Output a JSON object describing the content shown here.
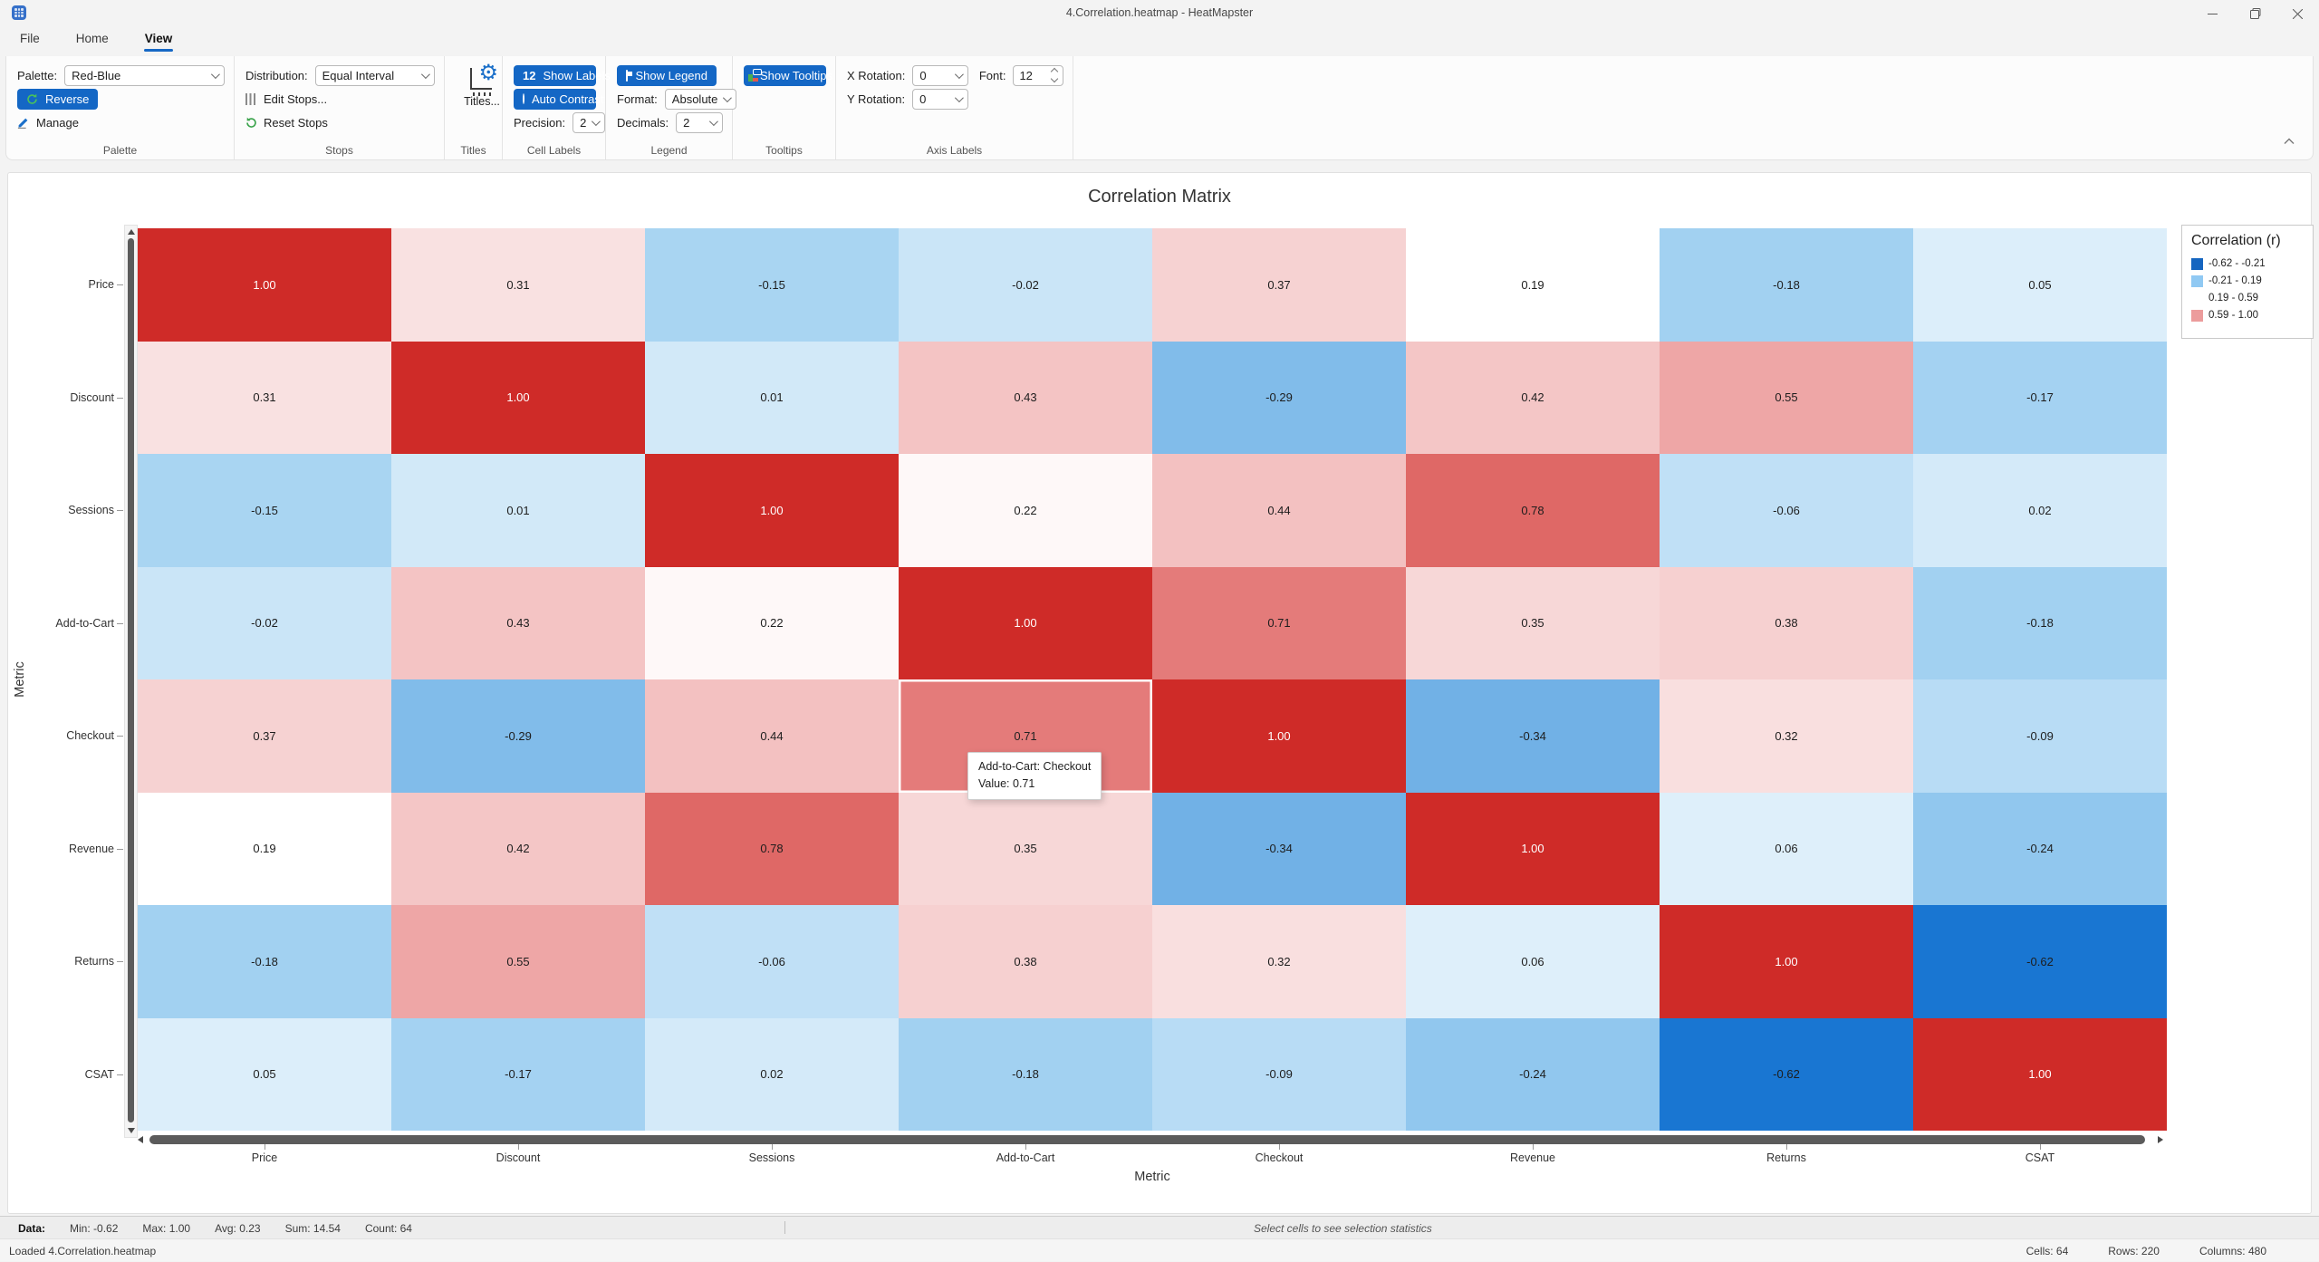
{
  "window": {
    "title": "4.Correlation.heatmap - HeatMapster"
  },
  "tabs": {
    "file": "File",
    "home": "Home",
    "view": "View"
  },
  "ribbon": {
    "palette": {
      "title": "Palette",
      "label": "Palette:",
      "value": "Red-Blue",
      "reverse": "Reverse",
      "manage": "Manage"
    },
    "stops": {
      "title": "Stops",
      "label": "Distribution:",
      "value": "Equal Interval",
      "edit": "Edit Stops...",
      "reset": "Reset Stops"
    },
    "titles": {
      "title": "Titles",
      "button": "Titles..."
    },
    "cell_labels": {
      "title": "Cell Labels",
      "badge": "12",
      "show_labels": "Show Labels",
      "auto_contrast": "Auto Contrast",
      "precision_label": "Precision:",
      "precision_value": "2"
    },
    "legend": {
      "title": "Legend",
      "show_legend": "Show Legend",
      "format_label": "Format:",
      "format_value": "Absolute",
      "decimals_label": "Decimals:",
      "decimals_value": "2"
    },
    "tooltips": {
      "title": "Tooltips",
      "show_tooltips": "Show Tooltips"
    },
    "axis_labels": {
      "title": "Axis Labels",
      "x_label": "X Rotation:",
      "x_value": "0",
      "y_label": "Y Rotation:",
      "y_value": "0",
      "font_label": "Font:",
      "font_value": "12"
    }
  },
  "accent_color": "#1467c5",
  "chart_data": {
    "type": "heatmap",
    "title": "Correlation Matrix",
    "xlabel": "Metric",
    "ylabel": "Metric",
    "categories": [
      "Price",
      "Discount",
      "Sessions",
      "Add-to-Cart",
      "Checkout",
      "Revenue",
      "Returns",
      "CSAT"
    ],
    "matrix": [
      [
        1.0,
        0.31,
        -0.15,
        -0.02,
        0.37,
        0.19,
        -0.18,
        0.05
      ],
      [
        0.31,
        1.0,
        0.01,
        0.43,
        -0.29,
        0.42,
        0.55,
        -0.17
      ],
      [
        -0.15,
        0.01,
        1.0,
        0.22,
        0.44,
        0.78,
        -0.06,
        0.02
      ],
      [
        -0.02,
        0.43,
        0.22,
        1.0,
        0.71,
        0.35,
        0.38,
        -0.18
      ],
      [
        0.37,
        -0.29,
        0.44,
        0.71,
        1.0,
        -0.34,
        0.32,
        -0.09
      ],
      [
        0.19,
        0.42,
        0.78,
        0.35,
        -0.34,
        1.0,
        0.06,
        -0.24
      ],
      [
        -0.18,
        0.55,
        -0.06,
        0.38,
        0.32,
        0.06,
        1.0,
        -0.62
      ],
      [
        0.05,
        -0.17,
        0.02,
        -0.18,
        -0.09,
        -0.24,
        -0.62,
        1.0
      ]
    ],
    "value_range": [
      -0.62,
      1.0
    ],
    "value_decimals": 2,
    "palette_stops": [
      {
        "value": -0.62,
        "color": "#1976d2"
      },
      {
        "value": -0.21,
        "color": "#9acdf0"
      },
      {
        "value": 0.19,
        "color": "#ffffff"
      },
      {
        "value": 0.59,
        "color": "#ec9c9c"
      },
      {
        "value": 1.0,
        "color": "#cf2b28"
      }
    ],
    "legend": {
      "title": "Correlation (r)",
      "entries": [
        {
          "color": "#1565c0",
          "label": "-0.62 - -0.21"
        },
        {
          "color": "#90c9f3",
          "label": "-0.21 - 0.19"
        },
        {
          "color": "#ffffff",
          "label": "0.19 - 0.59"
        },
        {
          "color": "#ec9c9c",
          "label": "0.59 - 1.00"
        }
      ]
    },
    "hover": {
      "row_index": 4,
      "col_index": 3,
      "tooltip_line1": "Add-to-Cart: Checkout",
      "tooltip_line2": "Value: 0.71"
    }
  },
  "status_bar": {
    "data_label": "Data:",
    "min": "Min: -0.62",
    "max": "Max: 1.00",
    "avg": "Avg: 0.23",
    "sum": "Sum: 14.54",
    "count": "Count: 64",
    "selection_hint": "Select cells to see selection statistics",
    "loaded": "Loaded 4.Correlation.heatmap",
    "cells": "Cells: 64",
    "rows": "Rows: 220",
    "columns": "Columns: 480"
  }
}
